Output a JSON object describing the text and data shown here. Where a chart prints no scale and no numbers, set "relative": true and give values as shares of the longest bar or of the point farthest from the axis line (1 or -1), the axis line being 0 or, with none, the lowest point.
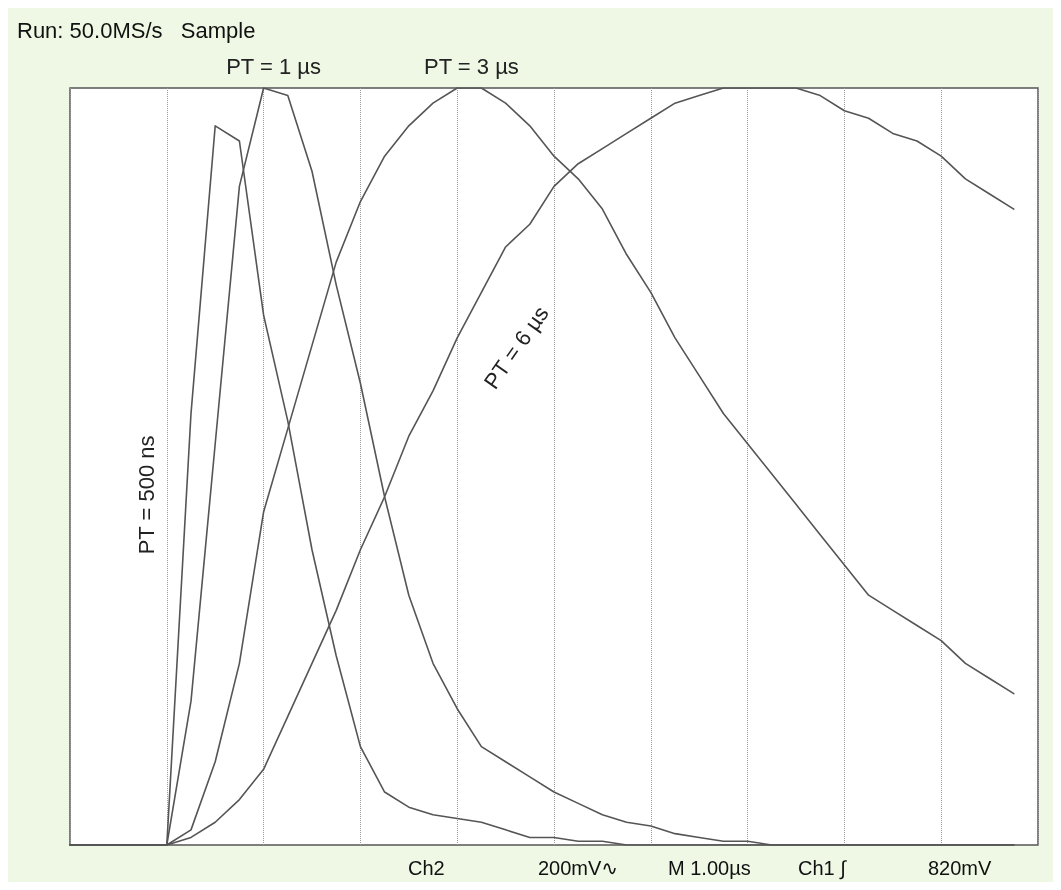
{
  "chart_data": {
    "type": "line",
    "title": "Run: 50.0MS/s   Sample",
    "relative": true,
    "grid": true,
    "legend": false,
    "marker": "none",
    "line_style": "solid",
    "annotations": [
      "Ch2",
      "200mV∿",
      "M 1.00µs",
      "Ch1 ∫",
      "820mV"
    ],
    "categories": [
      null,
      null,
      null,
      null,
      null,
      null,
      null,
      null,
      null,
      null,
      null,
      null,
      null,
      null,
      null,
      null,
      null,
      null,
      null,
      null,
      null,
      null,
      null,
      null,
      null,
      null,
      null,
      null,
      null,
      null,
      null,
      null,
      null,
      null,
      null,
      null,
      null,
      null,
      null,
      null,
      null
    ],
    "series": [
      {
        "name": "PT = 500 ns",
        "color": "#555555",
        "values": [
          0,
          0,
          0,
          0,
          0,
          0.57,
          0.95,
          0.93,
          0.7,
          0.56,
          0.39,
          0.25,
          0.13,
          0.07,
          0.05,
          0.04,
          0.035,
          0.03,
          0.02,
          0.01,
          0.01,
          0.005,
          0.005,
          0,
          0,
          0,
          0,
          0,
          0,
          0,
          0,
          0,
          0,
          0,
          0,
          0,
          0,
          0,
          0,
          0,
          null
        ]
      },
      {
        "name": "PT = 1 µs",
        "color": "#555555",
        "values": [
          0,
          0,
          0,
          0,
          0,
          0.19,
          0.53,
          0.87,
          1,
          0.99,
          0.89,
          0.74,
          0.61,
          0.46,
          0.33,
          0.24,
          0.18,
          0.13,
          0.11,
          0.09,
          0.07,
          0.055,
          0.04,
          0.03,
          0.025,
          0.015,
          0.01,
          0.005,
          0.005,
          0,
          0,
          0,
          0,
          0,
          0,
          0,
          0,
          0,
          0,
          0,
          null
        ]
      },
      {
        "name": "PT = 3 µs",
        "color": "#555555",
        "values": [
          0,
          0,
          0,
          0,
          0,
          0.02,
          0.11,
          0.24,
          0.44,
          0.55,
          0.66,
          0.77,
          0.85,
          0.91,
          0.95,
          0.98,
          1,
          1,
          0.98,
          0.95,
          0.91,
          0.88,
          0.84,
          0.78,
          0.73,
          0.67,
          0.62,
          0.57,
          0.53,
          0.49,
          0.45,
          0.41,
          0.37,
          0.33,
          0.31,
          0.29,
          0.27,
          0.24,
          0.22,
          0.2,
          null
        ]
      },
      {
        "name": "PT = 6 µs",
        "color": "#555555",
        "values": [
          0,
          0,
          0,
          0,
          0,
          0.01,
          0.03,
          0.06,
          0.1,
          0.17,
          0.24,
          0.31,
          0.39,
          0.46,
          0.54,
          0.6,
          0.67,
          0.73,
          0.79,
          0.82,
          0.87,
          0.9,
          0.92,
          0.94,
          0.96,
          0.98,
          0.99,
          1,
          1,
          1,
          1,
          0.99,
          0.97,
          0.96,
          0.94,
          0.93,
          0.91,
          0.88,
          0.86,
          0.84,
          null
        ]
      }
    ]
  }
}
